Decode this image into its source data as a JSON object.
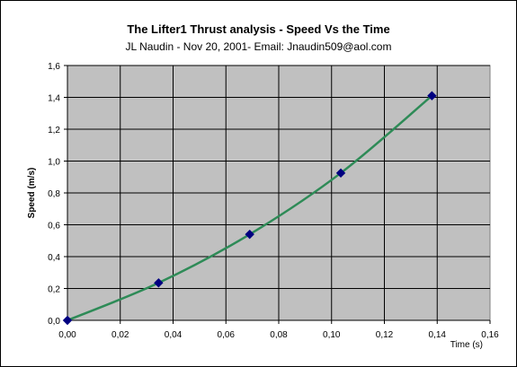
{
  "chart_data": {
    "type": "line",
    "title": "The Lifter1 Thrust analysis - Speed Vs the Time",
    "subtitle": "JL Naudin - Nov 20, 2001- Email: Jnaudin509@aol.com",
    "xlabel": "Time (s)",
    "ylabel": "Speed (m/s)",
    "xlim": [
      0,
      0.16
    ],
    "ylim": [
      0,
      1.6
    ],
    "x_ticks": [
      "0,00",
      "0,02",
      "0,04",
      "0,06",
      "0,08",
      "0,10",
      "0,12",
      "0,14",
      "0,16"
    ],
    "y_ticks": [
      "0,0",
      "0,2",
      "0,4",
      "0,6",
      "0,8",
      "1,0",
      "1,2",
      "1,4",
      "1,6"
    ],
    "grid": true,
    "plot_background": "#c0c0c0",
    "series": [
      {
        "x": [
          0.0,
          0.0345,
          0.069,
          0.1035,
          0.138
        ],
        "y": [
          0.0,
          0.235,
          0.54,
          0.925,
          1.41
        ],
        "marker_color": "#000080",
        "line_color": "#2e8b57",
        "smooth": true
      }
    ]
  }
}
